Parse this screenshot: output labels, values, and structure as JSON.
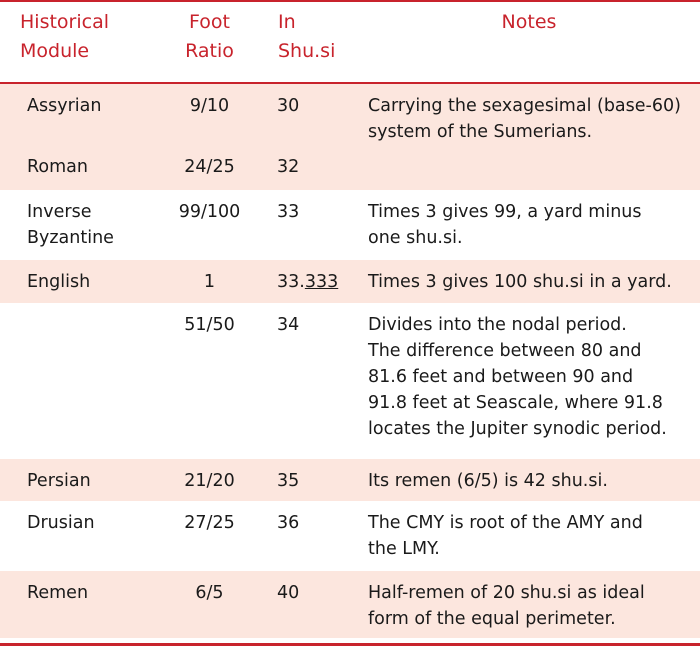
{
  "colors": {
    "accent": "#c8232c",
    "row_shade": "#fce6de"
  },
  "headers": {
    "module": [
      "Historical",
      "Module"
    ],
    "ratio": [
      "Foot",
      "Ratio"
    ],
    "shusi": [
      "In",
      "Shu.si"
    ],
    "notes": "Notes"
  },
  "rows": [
    {
      "module": [
        "Assyrian"
      ],
      "ratio": "9/10",
      "shusi": "30",
      "shusi_underlined": "",
      "notes": [
        "Carrying the sexagesimal (base-60)",
        "system of the Sumerians."
      ]
    },
    {
      "module": [
        "Roman"
      ],
      "ratio": "24/25",
      "shusi": "32",
      "shusi_underlined": "",
      "notes": []
    },
    {
      "module": [
        "Inverse",
        "Byzantine"
      ],
      "ratio": "99/100",
      "shusi": "33",
      "shusi_underlined": "",
      "notes": [
        "Times 3 gives 99, a yard minus",
        "one shu.si."
      ]
    },
    {
      "module": [
        "English"
      ],
      "ratio": "1",
      "shusi": "33.",
      "shusi_underlined": "333",
      "notes": [
        "Times 3 gives 100 shu.si in a yard."
      ]
    },
    {
      "module": [],
      "ratio": "51/50",
      "shusi": "34",
      "shusi_underlined": "",
      "notes": [
        "Divides into the nodal period.",
        "The difference between 80 and",
        "81.6 feet and between 90 and",
        "91.8 feet at Seascale, where 91.8",
        "locates the Jupiter synodic period."
      ]
    },
    {
      "module": [
        "Persian"
      ],
      "ratio": "21/20",
      "shusi": "35",
      "shusi_underlined": "",
      "notes": [
        "Its remen (6/5) is 42 shu.si."
      ]
    },
    {
      "module": [
        "Drusian"
      ],
      "ratio": "27/25",
      "shusi": "36",
      "shusi_underlined": "",
      "notes": [
        "The CMY is root of the AMY and",
        "the LMY."
      ]
    },
    {
      "module": [
        "Remen"
      ],
      "ratio": "6/5",
      "shusi": "40",
      "shusi_underlined": "",
      "notes": [
        "Half-remen of 20 shu.si as ideal",
        "form of the equal perimeter."
      ]
    }
  ]
}
